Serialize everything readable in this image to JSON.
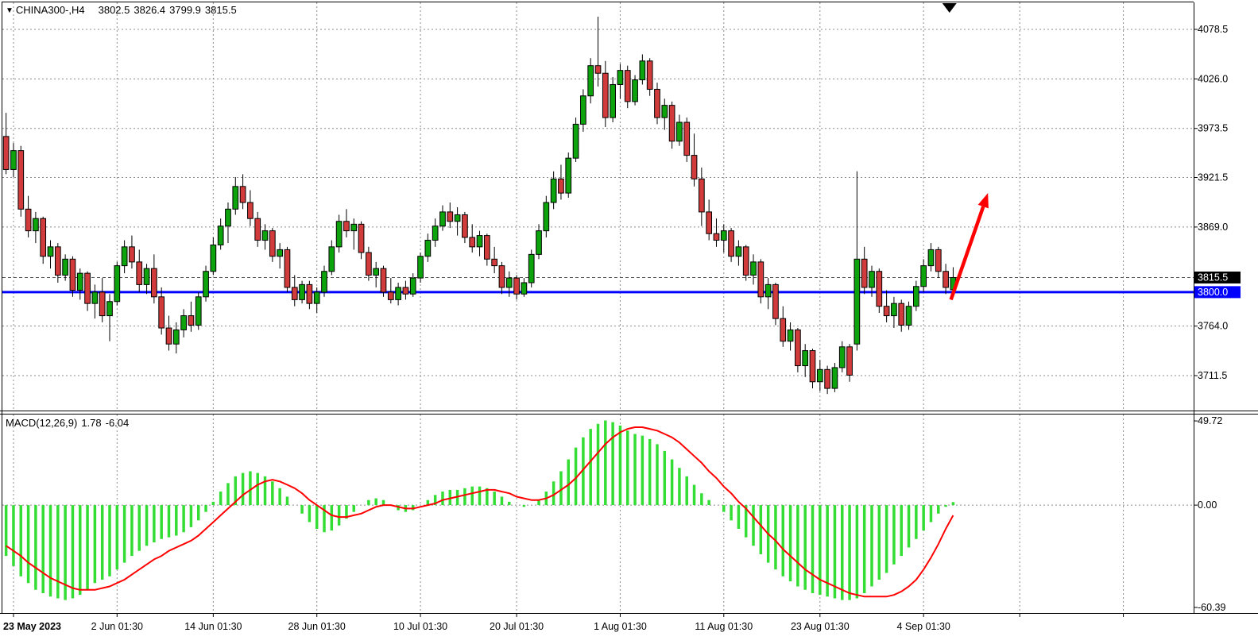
{
  "header": {
    "collapse_icon": "▼",
    "symbol": "CHINA300-,H4",
    "open": "3802.5",
    "high": "3826.4",
    "low": "3799.9",
    "close": "3815.5"
  },
  "indicator": {
    "name": "MACD(12,26,9)",
    "main_value": "1.78",
    "signal_value": "-6.04"
  },
  "chart_data": {
    "type": "candlestick",
    "symbol": "CHINA300-,H4",
    "timeframe": "H4",
    "style": {
      "background": "#ffffff",
      "up_color": "#0CA30C",
      "down_color": "#D23B3B",
      "wick_color": "#000000",
      "grid_color": "#8c8c8c",
      "macd_histogram_color": "#33DD33",
      "macd_signal_color": "#FF0000",
      "hline_color": "#0000FF",
      "arrow_color": "#FF0000",
      "current_price_label_bg": "#000000",
      "hline_label_bg": "#0000FF"
    },
    "price_panel": {
      "ylim": [
        3674.5,
        4107.1
      ],
      "grid_prices": [
        4078.5,
        4026.0,
        3973.5,
        3921.5,
        3869.0,
        3764.0,
        3711.5
      ],
      "axis_labels": [
        {
          "price": 4078.5,
          "text": "4078.5",
          "type": "grid"
        },
        {
          "price": 4026.0,
          "text": "4026.0",
          "type": "grid"
        },
        {
          "price": 3973.5,
          "text": "3973.5",
          "type": "grid"
        },
        {
          "price": 3921.5,
          "text": "3921.5",
          "type": "grid"
        },
        {
          "price": 3869.0,
          "text": "3869.0",
          "type": "grid"
        },
        {
          "price": 3815.5,
          "text": "3815.5",
          "type": "current"
        },
        {
          "price": 3800.0,
          "text": "3800.0",
          "type": "hline"
        },
        {
          "price": 3764.0,
          "text": "3764.0",
          "type": "grid"
        },
        {
          "price": 3711.5,
          "text": "3711.5",
          "type": "grid"
        }
      ],
      "current_price": 3815.5,
      "hline": {
        "price": 3800.0
      },
      "candles": [
        [
          3965,
          3990,
          3925,
          3930
        ],
        [
          3930,
          3958,
          3922,
          3950
        ],
        [
          3950,
          3955,
          3880,
          3888
        ],
        [
          3888,
          3902,
          3858,
          3865
        ],
        [
          3865,
          3885,
          3852,
          3878
        ],
        [
          3878,
          3880,
          3830,
          3838
        ],
        [
          3838,
          3855,
          3825,
          3848
        ],
        [
          3848,
          3852,
          3810,
          3818
        ],
        [
          3818,
          3840,
          3812,
          3835
        ],
        [
          3835,
          3838,
          3795,
          3802
        ],
        [
          3802,
          3825,
          3792,
          3820
        ],
        [
          3820,
          3822,
          3780,
          3788
        ],
        [
          3788,
          3808,
          3772,
          3800
        ],
        [
          3800,
          3815,
          3768,
          3775
        ],
        [
          3775,
          3798,
          3748,
          3790
        ],
        [
          3790,
          3832,
          3786,
          3828
        ],
        [
          3828,
          3855,
          3820,
          3848
        ],
        [
          3848,
          3860,
          3825,
          3832
        ],
        [
          3832,
          3845,
          3800,
          3808
        ],
        [
          3808,
          3830,
          3798,
          3825
        ],
        [
          3825,
          3840,
          3788,
          3795
        ],
        [
          3795,
          3805,
          3755,
          3762
        ],
        [
          3762,
          3775,
          3738,
          3745
        ],
        [
          3745,
          3768,
          3735,
          3760
        ],
        [
          3760,
          3782,
          3752,
          3775
        ],
        [
          3775,
          3790,
          3758,
          3765
        ],
        [
          3765,
          3800,
          3760,
          3795
        ],
        [
          3795,
          3828,
          3790,
          3822
        ],
        [
          3822,
          3858,
          3818,
          3850
        ],
        [
          3850,
          3878,
          3845,
          3870
        ],
        [
          3870,
          3895,
          3852,
          3888
        ],
        [
          3888,
          3922,
          3882,
          3912
        ],
        [
          3912,
          3925,
          3888,
          3895
        ],
        [
          3895,
          3908,
          3870,
          3878
        ],
        [
          3878,
          3885,
          3848,
          3855
        ],
        [
          3855,
          3872,
          3845,
          3865
        ],
        [
          3865,
          3868,
          3832,
          3838
        ],
        [
          3838,
          3852,
          3825,
          3845
        ],
        [
          3845,
          3848,
          3800,
          3805
        ],
        [
          3805,
          3818,
          3785,
          3792
        ],
        [
          3792,
          3812,
          3788,
          3808
        ],
        [
          3808,
          3812,
          3782,
          3788
        ],
        [
          3788,
          3805,
          3778,
          3800
        ],
        [
          3800,
          3828,
          3795,
          3822
        ],
        [
          3822,
          3855,
          3818,
          3848
        ],
        [
          3848,
          3882,
          3842,
          3875
        ],
        [
          3875,
          3888,
          3858,
          3865
        ],
        [
          3865,
          3878,
          3845,
          3872
        ],
        [
          3872,
          3875,
          3835,
          3842
        ],
        [
          3842,
          3848,
          3812,
          3818
        ],
        [
          3818,
          3832,
          3805,
          3825
        ],
        [
          3825,
          3828,
          3795,
          3800
        ],
        [
          3800,
          3815,
          3788,
          3792
        ],
        [
          3792,
          3810,
          3786,
          3805
        ],
        [
          3805,
          3812,
          3792,
          3798
        ],
        [
          3798,
          3820,
          3795,
          3815
        ],
        [
          3815,
          3842,
          3810,
          3838
        ],
        [
          3838,
          3862,
          3832,
          3855
        ],
        [
          3855,
          3878,
          3848,
          3870
        ],
        [
          3870,
          3892,
          3865,
          3885
        ],
        [
          3885,
          3895,
          3868,
          3875
        ],
        [
          3875,
          3890,
          3860,
          3882
        ],
        [
          3882,
          3885,
          3852,
          3858
        ],
        [
          3858,
          3872,
          3842,
          3848
        ],
        [
          3848,
          3865,
          3838,
          3860
        ],
        [
          3860,
          3862,
          3828,
          3835
        ],
        [
          3835,
          3848,
          3820,
          3828
        ],
        [
          3828,
          3832,
          3798,
          3805
        ],
        [
          3805,
          3822,
          3795,
          3815
        ],
        [
          3815,
          3818,
          3792,
          3798
        ],
        [
          3798,
          3815,
          3795,
          3810
        ],
        [
          3810,
          3845,
          3805,
          3840
        ],
        [
          3840,
          3872,
          3835,
          3865
        ],
        [
          3865,
          3902,
          3858,
          3895
        ],
        [
          3895,
          3928,
          3888,
          3920
        ],
        [
          3920,
          3935,
          3898,
          3905
        ],
        [
          3905,
          3948,
          3900,
          3942
        ],
        [
          3942,
          3985,
          3938,
          3978
        ],
        [
          3978,
          4015,
          3970,
          4008
        ],
        [
          4008,
          4048,
          4000,
          4040
        ],
        [
          4040,
          4092,
          4018,
          4032
        ],
        [
          4032,
          4045,
          3975,
          3985
        ],
        [
          3985,
          4028,
          3980,
          4020
        ],
        [
          4020,
          4042,
          4005,
          4035
        ],
        [
          4035,
          4040,
          3995,
          4002
        ],
        [
          4002,
          4030,
          3998,
          4025
        ],
        [
          4025,
          4052,
          4020,
          4045
        ],
        [
          4045,
          4048,
          4008,
          4015
        ],
        [
          4015,
          4022,
          3978,
          3985
        ],
        [
          3985,
          4005,
          3972,
          3998
        ],
        [
          3998,
          4002,
          3952,
          3960
        ],
        [
          3960,
          3988,
          3955,
          3980
        ],
        [
          3980,
          3985,
          3938,
          3945
        ],
        [
          3945,
          3968,
          3912,
          3920
        ],
        [
          3920,
          3932,
          3870,
          3885
        ],
        [
          3885,
          3898,
          3855,
          3862
        ],
        [
          3862,
          3878,
          3848,
          3855
        ],
        [
          3855,
          3872,
          3842,
          3865
        ],
        [
          3865,
          3868,
          3832,
          3838
        ],
        [
          3838,
          3855,
          3828,
          3848
        ],
        [
          3848,
          3850,
          3812,
          3818
        ],
        [
          3818,
          3840,
          3808,
          3832
        ],
        [
          3832,
          3835,
          3788,
          3795
        ],
        [
          3795,
          3815,
          3782,
          3808
        ],
        [
          3808,
          3810,
          3765,
          3772
        ],
        [
          3772,
          3785,
          3742,
          3748
        ],
        [
          3748,
          3768,
          3738,
          3760
        ],
        [
          3760,
          3762,
          3715,
          3722
        ],
        [
          3722,
          3745,
          3710,
          3738
        ],
        [
          3738,
          3740,
          3698,
          3705
        ],
        [
          3705,
          3728,
          3695,
          3718
        ],
        [
          3718,
          3722,
          3692,
          3698
        ],
        [
          3698,
          3725,
          3694,
          3720
        ],
        [
          3720,
          3748,
          3715,
          3742
        ],
        [
          3742,
          3745,
          3705,
          3712
        ],
        [
          3745,
          3928,
          3738,
          3835
        ],
        [
          3835,
          3848,
          3798,
          3805
        ],
        [
          3805,
          3828,
          3795,
          3822
        ],
        [
          3822,
          3825,
          3778,
          3785
        ],
        [
          3785,
          3802,
          3768,
          3775
        ],
        [
          3775,
          3795,
          3762,
          3788
        ],
        [
          3788,
          3792,
          3758,
          3765
        ],
        [
          3765,
          3790,
          3760,
          3785
        ],
        [
          3785,
          3812,
          3780,
          3806
        ],
        [
          3806,
          3835,
          3800,
          3828
        ],
        [
          3828,
          3852,
          3822,
          3845
        ],
        [
          3845,
          3848,
          3815,
          3822
        ],
        [
          3822,
          3830,
          3798,
          3805
        ],
        [
          3802.5,
          3826.4,
          3799.9,
          3815.5
        ]
      ]
    },
    "macd_panel": {
      "label": "MACD(12,26,9)",
      "current_main": 1.78,
      "current_signal": -6.04,
      "ylim": [
        -63.7,
        53.5
      ],
      "axis_labels": [
        {
          "value": 49.72,
          "text": "49.72"
        },
        {
          "value": 0,
          "text": "0.00"
        },
        {
          "value": -60.39,
          "text": "-60.39"
        }
      ],
      "main": [
        -30,
        -36,
        -42,
        -46,
        -50,
        -52,
        -54,
        -55,
        -56,
        -55,
        -53,
        -50,
        -46,
        -44,
        -42,
        -38,
        -34,
        -30,
        -27,
        -24,
        -22,
        -20,
        -19,
        -18,
        -16,
        -13,
        -9,
        -4,
        2,
        8,
        13,
        17,
        19,
        20,
        19,
        17,
        14,
        10,
        5,
        0,
        -5,
        -10,
        -14,
        -16,
        -15,
        -12,
        -8,
        -4,
        0,
        3,
        4,
        3,
        0,
        -3,
        -4,
        -3,
        0,
        3,
        6,
        8,
        9,
        9,
        10,
        11,
        11,
        10,
        8,
        5,
        2,
        0,
        -1,
        0,
        3,
        8,
        14,
        20,
        27,
        34,
        40,
        45,
        48,
        50,
        49,
        47,
        44,
        42,
        41,
        39,
        36,
        32,
        27,
        22,
        17,
        12,
        7,
        3,
        0,
        -4,
        -9,
        -14,
        -19,
        -24,
        -29,
        -34,
        -38,
        -42,
        -45,
        -48,
        -50,
        -52,
        -53,
        -54,
        -55,
        -56,
        -56,
        -55,
        -52,
        -48,
        -44,
        -40,
        -35,
        -30,
        -25,
        -20,
        -15,
        -10,
        -5,
        -1,
        1.78
      ],
      "signal": [
        -24,
        -27,
        -30,
        -34,
        -37,
        -40,
        -43,
        -45,
        -47,
        -49,
        -50,
        -50,
        -50,
        -49,
        -48,
        -46,
        -44,
        -41,
        -38,
        -35,
        -32,
        -30,
        -27,
        -25,
        -23,
        -21,
        -18,
        -14,
        -10,
        -6,
        -2,
        2,
        6,
        9,
        12,
        14,
        15,
        14,
        12,
        10,
        7,
        3,
        0,
        -3,
        -6,
        -7,
        -7,
        -6,
        -5,
        -3,
        -1,
        0,
        0,
        -1,
        -2,
        -2,
        -1,
        0,
        1,
        3,
        4,
        5,
        6,
        7,
        8,
        9,
        9,
        8,
        7,
        5,
        4,
        3,
        3,
        4,
        6,
        9,
        12,
        16,
        21,
        26,
        31,
        36,
        40,
        43,
        45,
        46,
        46,
        45,
        44,
        42,
        40,
        37,
        33,
        29,
        25,
        20,
        16,
        11,
        7,
        2,
        -2,
        -7,
        -12,
        -17,
        -21,
        -26,
        -30,
        -34,
        -38,
        -41,
        -44,
        -46,
        -48,
        -50,
        -52,
        -53,
        -54,
        -54,
        -54,
        -54,
        -53,
        -51,
        -48,
        -44,
        -38,
        -31,
        -23,
        -14,
        -6.04
      ]
    },
    "x_axis": {
      "total_slots": 161,
      "ticks": [
        {
          "index": 1,
          "label": "23 May 2023"
        },
        {
          "index": 15,
          "label": "2 Jun 01:30"
        },
        {
          "index": 28,
          "label": "14 Jun 01:30"
        },
        {
          "index": 42,
          "label": "28 Jun 01:30"
        },
        {
          "index": 56,
          "label": "10 Jul 01:30"
        },
        {
          "index": 69,
          "label": "20 Jul 01:30"
        },
        {
          "index": 83,
          "label": "1 Aug 01:30"
        },
        {
          "index": 97,
          "label": "11 Aug 01:30"
        },
        {
          "index": 110,
          "label": "23 Aug 01:30"
        },
        {
          "index": 124,
          "label": "4 Sep 01:30"
        },
        {
          "index": 137,
          "label": ""
        },
        {
          "index": 151,
          "label": ""
        }
      ]
    },
    "annotations": {
      "arrow": {
        "from": {
          "index": 127.7,
          "price": 3792
        },
        "to": {
          "index": 132.7,
          "price": 3905
        }
      },
      "shift_marker_index": 127.5
    }
  }
}
